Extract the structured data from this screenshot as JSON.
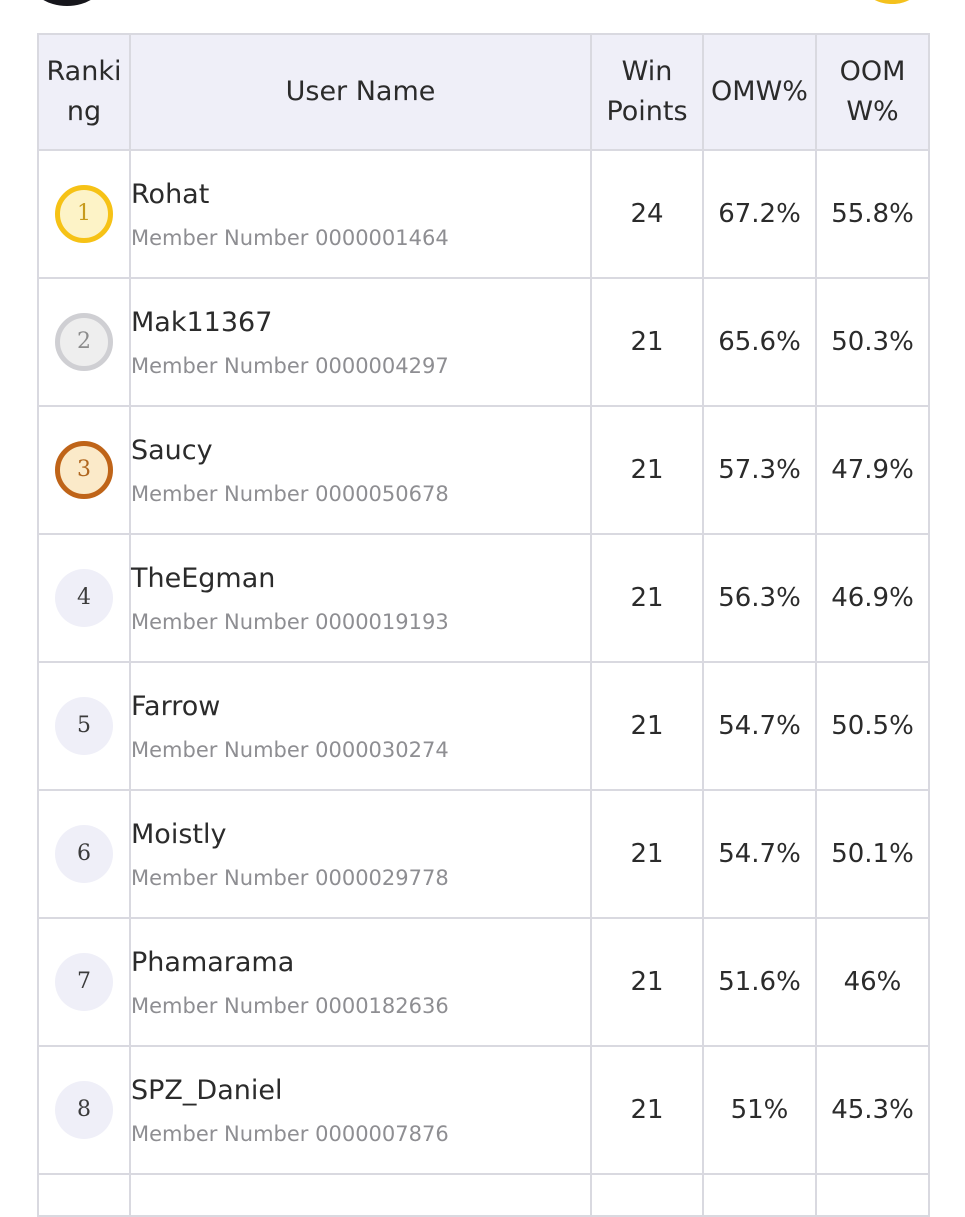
{
  "table": {
    "headers": {
      "ranking": "Ranking",
      "user_name": "User Name",
      "win_points": "Win Points",
      "omw": "OMW%",
      "oomw": "OOMW%"
    },
    "member_prefix": "Member Number",
    "rows": [
      {
        "rank": "1",
        "user": "Rohat",
        "member_number": "0000001464",
        "win_points": "24",
        "omw": "67.2%",
        "oomw": "55.8%"
      },
      {
        "rank": "2",
        "user": "Mak11367",
        "member_number": "0000004297",
        "win_points": "21",
        "omw": "65.6%",
        "oomw": "50.3%"
      },
      {
        "rank": "3",
        "user": "Saucy",
        "member_number": "0000050678",
        "win_points": "21",
        "omw": "57.3%",
        "oomw": "47.9%"
      },
      {
        "rank": "4",
        "user": "TheEgman",
        "member_number": "0000019193",
        "win_points": "21",
        "omw": "56.3%",
        "oomw": "46.9%"
      },
      {
        "rank": "5",
        "user": "Farrow",
        "member_number": "0000030274",
        "win_points": "21",
        "omw": "54.7%",
        "oomw": "50.5%"
      },
      {
        "rank": "6",
        "user": "Moistly",
        "member_number": "0000029778",
        "win_points": "21",
        "omw": "54.7%",
        "oomw": "50.1%"
      },
      {
        "rank": "7",
        "user": "Phamarama",
        "member_number": "0000182636",
        "win_points": "21",
        "omw": "51.6%",
        "oomw": "46%"
      },
      {
        "rank": "8",
        "user": "SPZ_Daniel",
        "member_number": "0000007876",
        "win_points": "21",
        "omw": "51%",
        "oomw": "45.3%"
      }
    ]
  },
  "colors": {
    "header_bg": "#efeff8",
    "border": "#d9d9e0",
    "gold": "#f6c216",
    "silver": "#cfcfd3",
    "bronze": "#bf6418",
    "member_text": "#8e8e92"
  }
}
